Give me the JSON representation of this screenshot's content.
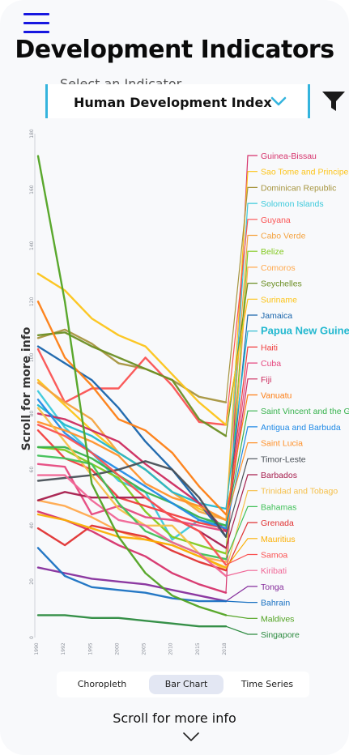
{
  "header": {
    "title": "Development Indicators",
    "menu_icon": "hamburger-menu-icon",
    "filter_icon": "filter-funnel-icon"
  },
  "indicator_select": {
    "label": "Select an Indicator",
    "value": "Human Development Index"
  },
  "tabs": [
    {
      "label": "Choropleth",
      "active": false
    },
    {
      "label": "Bar Chart",
      "active": true
    },
    {
      "label": "Time Series",
      "active": false
    }
  ],
  "scroll_hint": "Scroll for more info",
  "colors": {
    "accent": "#34b4dd",
    "menu": "#1717e0"
  },
  "chart_data": {
    "type": "line",
    "title": "",
    "xlabel": "",
    "ylabel": "Scroll for more info",
    "x": [
      "1990",
      "1992",
      "1995",
      "2000",
      "2005",
      "2010",
      "2015",
      "2018"
    ],
    "y_ticks": [
      "0",
      "20",
      "40",
      "60",
      "80",
      "100",
      "120",
      "140",
      "160",
      "180"
    ],
    "ylim": [
      0,
      180
    ],
    "series": [
      {
        "name": "Guinea-Bissau",
        "color": "#d6336c",
        "values": [
          45,
          42,
          38,
          33,
          29,
          23,
          19,
          16
        ]
      },
      {
        "name": "Sao Tome and Principe",
        "color": "#fcc419",
        "values": [
          92,
          83,
          74,
          66,
          60,
          52,
          46,
          42
        ]
      },
      {
        "name": "Dominican Republic",
        "color": "#a6953f",
        "values": [
          107,
          110,
          105,
          98,
          96,
          92,
          86,
          84
        ]
      },
      {
        "name": "Solomon Islands",
        "color": "#3bc9db",
        "values": [
          88,
          75,
          66,
          56,
          52,
          35,
          42,
          40
        ]
      },
      {
        "name": "Guyana",
        "color": "#fa5252",
        "values": [
          103,
          84,
          89,
          89,
          100,
          90,
          77,
          76
        ]
      },
      {
        "name": "Cabo Verde",
        "color": "#f4a340",
        "values": [
          91,
          84,
          78,
          66,
          60,
          52,
          45,
          42
        ]
      },
      {
        "name": "Belize",
        "color": "#82c91e",
        "values": [
          68,
          67,
          62,
          57,
          45,
          36,
          33,
          30
        ]
      },
      {
        "name": "Comoros",
        "color": "#ffa94d",
        "values": [
          49,
          47,
          43,
          38,
          35,
          33,
          29,
          27
        ]
      },
      {
        "name": "Seychelles",
        "color": "#6b8e23",
        "values": [
          108,
          109,
          104,
          100,
          96,
          92,
          78,
          72
        ]
      },
      {
        "name": "Suriname",
        "color": "#fcc419",
        "values": [
          130,
          124,
          114,
          108,
          104,
          94,
          84,
          76
        ]
      },
      {
        "name": "Jamaica",
        "color": "#1864ab",
        "values": [
          104,
          98,
          92,
          82,
          70,
          60,
          48,
          36
        ]
      },
      {
        "name": "Papua New Guinea",
        "color": "#22b8cf",
        "values": [
          83,
          76,
          72,
          66,
          60,
          52,
          48,
          46
        ]
      },
      {
        "name": "Haiti",
        "color": "#f03e3e",
        "values": [
          74,
          64,
          60,
          50,
          47,
          44,
          41,
          39
        ]
      },
      {
        "name": "Cuba",
        "color": "#e64980",
        "values": [
          62,
          61,
          44,
          47,
          43,
          42,
          40,
          38
        ]
      },
      {
        "name": "Fiji",
        "color": "#cc2b5e",
        "values": [
          80,
          78,
          74,
          70,
          62,
          55,
          48,
          38
        ]
      },
      {
        "name": "Vanuatu",
        "color": "#fd7e14",
        "values": [
          120,
          100,
          90,
          78,
          74,
          66,
          54,
          44
        ]
      },
      {
        "name": "Saint Vincent and the Grenadines",
        "color": "#37b24d",
        "values": [
          68,
          68,
          64,
          58,
          52,
          48,
          43,
          40
        ]
      },
      {
        "name": "Antigua and Barbuda",
        "color": "#228be6",
        "values": [
          85,
          73,
          66,
          60,
          54,
          48,
          42,
          39
        ]
      },
      {
        "name": "Saint Lucia",
        "color": "#ff922b",
        "values": [
          77,
          74,
          70,
          65,
          55,
          50,
          47,
          42
        ]
      },
      {
        "name": "Timor-Leste",
        "color": "#495057",
        "values": [
          56,
          57,
          58,
          60,
          63,
          60,
          50,
          36
        ]
      },
      {
        "name": "Barbados",
        "color": "#a61e4d",
        "values": [
          49,
          52,
          50,
          50,
          50,
          43,
          38,
          32
        ]
      },
      {
        "name": "Trinidad and Tobago",
        "color": "#f5c04a",
        "values": [
          82,
          70,
          58,
          46,
          40,
          40,
          30,
          24
        ]
      },
      {
        "name": "Bahamas",
        "color": "#40c057",
        "values": [
          65,
          64,
          62,
          48,
          38,
          34,
          30,
          28
        ]
      },
      {
        "name": "Grenada",
        "color": "#e03131",
        "values": [
          39,
          33,
          40,
          38,
          36,
          31,
          27,
          24
        ]
      },
      {
        "name": "Mauritius",
        "color": "#fab005",
        "values": [
          44,
          42,
          39,
          36,
          35,
          33,
          29,
          25
        ]
      },
      {
        "name": "Samoa",
        "color": "#fa5252",
        "values": [
          76,
          72,
          66,
          58,
          50,
          43,
          38,
          26
        ]
      },
      {
        "name": "Kiribati",
        "color": "#f06595",
        "values": [
          58,
          58,
          49,
          42,
          40,
          34,
          30,
          22
        ]
      },
      {
        "name": "Tonga",
        "color": "#862e9c",
        "values": [
          25,
          23,
          21,
          20,
          19,
          17,
          15,
          13
        ]
      },
      {
        "name": "Bahrain",
        "color": "#1971c2",
        "values": [
          32,
          22,
          18,
          17,
          16,
          14,
          13,
          13
        ]
      },
      {
        "name": "Maldives",
        "color": "#51a322",
        "values": [
          172,
          120,
          55,
          36,
          23,
          15,
          11,
          8
        ]
      },
      {
        "name": "Singapore",
        "color": "#2b8a3e",
        "values": [
          8,
          8,
          7,
          7,
          6,
          5,
          4,
          4
        ]
      }
    ]
  }
}
